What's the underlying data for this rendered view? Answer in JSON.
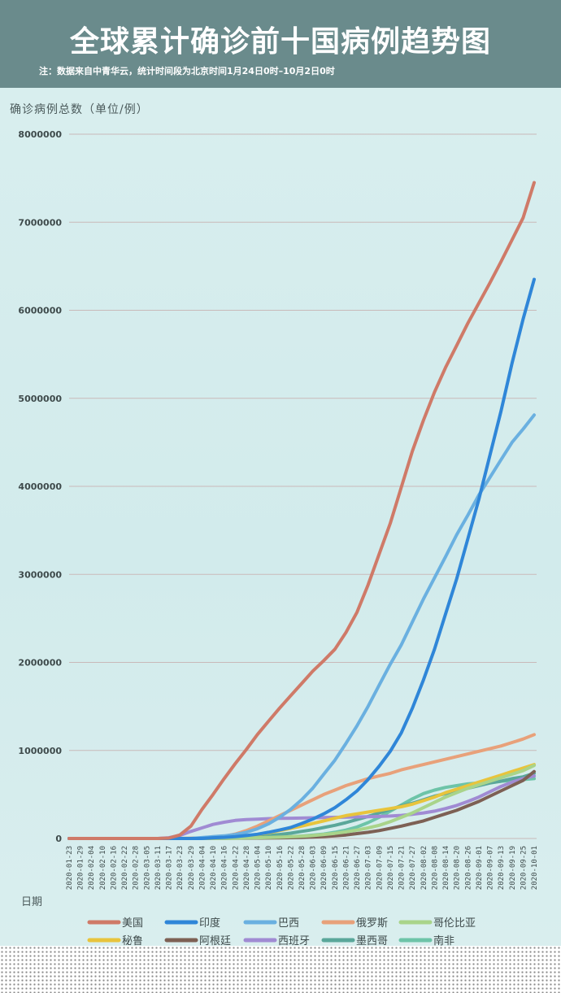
{
  "header": {
    "title": "全球累计确诊前十国病例趋势图",
    "note": "注：数据来自中青华云，统计时间段为北京时间1月24日0时–10月2日0时"
  },
  "chart_data": {
    "type": "line",
    "title": "全球累计确诊前十国病例趋势图",
    "ylabel": "确诊病例总数（单位/例）",
    "xlabel": "日期",
    "ylim": [
      0,
      8000000
    ],
    "yticks": [
      0,
      1000000,
      2000000,
      3000000,
      4000000,
      5000000,
      6000000,
      7000000,
      8000000
    ],
    "grid": true,
    "legend_position": "bottom",
    "x": [
      "2020-01-23",
      "2020-01-29",
      "2020-02-04",
      "2020-02-10",
      "2020-02-16",
      "2020-02-22",
      "2020-02-28",
      "2020-03-05",
      "2020-03-11",
      "2020-03-17",
      "2020-03-23",
      "2020-03-29",
      "2020-04-04",
      "2020-04-10",
      "2020-04-16",
      "2020-04-22",
      "2020-04-28",
      "2020-05-04",
      "2020-05-10",
      "2020-05-16",
      "2020-05-22",
      "2020-05-28",
      "2020-06-03",
      "2020-06-09",
      "2020-06-15",
      "2020-06-21",
      "2020-06-27",
      "2020-07-03",
      "2020-07-09",
      "2020-07-15",
      "2020-07-21",
      "2020-07-27",
      "2020-08-02",
      "2020-08-08",
      "2020-08-14",
      "2020-08-20",
      "2020-08-26",
      "2020-09-01",
      "2020-09-07",
      "2020-09-13",
      "2020-09-19",
      "2020-09-25",
      "2020-10-01"
    ],
    "xtick_labels": [
      "2020-01-23",
      "2020-01-29",
      "2020-02-04",
      "2020-02-10",
      "2020-02-16",
      "2020-02-22",
      "2020-02-28",
      "2020-03-05",
      "2020-03-11",
      "2020-03-17",
      "2020-03-23",
      "2020-03-29",
      "2020-04-04",
      "2020-04-10",
      "2020-04-16",
      "2020-04-22",
      "2020-04-28",
      "2020-05-04",
      "2020-05-10",
      "2020-05-16",
      "2020-05-22",
      "2020-05-28",
      "2020-06-03",
      "2020-06-09",
      "2020-06-15",
      "2020-06-21",
      "2020-06-27",
      "2020-07-03",
      "2020-07-09",
      "2020-07-15",
      "2020-07-21",
      "2020-07-27",
      "2020-08-02",
      "2020-08-08",
      "2020-08-14",
      "2020-08-20",
      "2020-08-26",
      "2020-09-01",
      "2020-09-07",
      "2020-09-13",
      "2020-09-19",
      "2020-09-25",
      "2020-10-01"
    ],
    "series": [
      {
        "name": "美国",
        "color": "#cf7a68",
        "values": [
          0,
          0,
          0,
          0,
          0,
          0,
          0,
          0,
          0,
          5000,
          40000,
          140000,
          330000,
          500000,
          680000,
          850000,
          1010000,
          1180000,
          1330000,
          1480000,
          1620000,
          1760000,
          1900000,
          2020000,
          2150000,
          2340000,
          2570000,
          2880000,
          3230000,
          3580000,
          3990000,
          4400000,
          4750000,
          5070000,
          5350000,
          5600000,
          5850000,
          6080000,
          6310000,
          6550000,
          6800000,
          7050000,
          7450000
        ]
      },
      {
        "name": "印度",
        "color": "#2f86d8",
        "values": [
          0,
          0,
          0,
          0,
          0,
          0,
          0,
          0,
          0,
          0,
          0,
          0,
          0,
          8000,
          13000,
          21000,
          33000,
          48000,
          70000,
          96000,
          125000,
          170000,
          220000,
          280000,
          350000,
          440000,
          540000,
          670000,
          820000,
          990000,
          1200000,
          1480000,
          1800000,
          2150000,
          2550000,
          2950000,
          3400000,
          3850000,
          4350000,
          4850000,
          5400000,
          5900000,
          6350000
        ]
      },
      {
        "name": "巴西",
        "color": "#6ab0e0",
        "values": [
          0,
          0,
          0,
          0,
          0,
          0,
          0,
          0,
          0,
          0,
          0,
          0,
          10000,
          20000,
          30000,
          45000,
          70000,
          110000,
          165000,
          240000,
          330000,
          440000,
          570000,
          730000,
          890000,
          1080000,
          1280000,
          1500000,
          1740000,
          1980000,
          2200000,
          2460000,
          2720000,
          2960000,
          3200000,
          3450000,
          3670000,
          3900000,
          4100000,
          4300000,
          4500000,
          4650000,
          4810000
        ]
      },
      {
        "name": "俄罗斯",
        "color": "#e8a17a",
        "values": [
          0,
          0,
          0,
          0,
          0,
          0,
          0,
          0,
          0,
          0,
          0,
          2000,
          5000,
          12000,
          25000,
          50000,
          90000,
          140000,
          200000,
          260000,
          320000,
          380000,
          440000,
          500000,
          550000,
          600000,
          640000,
          680000,
          710000,
          740000,
          780000,
          810000,
          840000,
          870000,
          900000,
          930000,
          960000,
          990000,
          1020000,
          1050000,
          1090000,
          1130000,
          1180000
        ]
      },
      {
        "name": "哥伦比亚",
        "color": "#a9d48a",
        "values": [
          0,
          0,
          0,
          0,
          0,
          0,
          0,
          0,
          0,
          0,
          0,
          0,
          1000,
          2000,
          3000,
          4000,
          6000,
          8000,
          11000,
          15000,
          19000,
          25000,
          33000,
          45000,
          58000,
          75000,
          95000,
          120000,
          150000,
          190000,
          240000,
          290000,
          350000,
          410000,
          470000,
          520000,
          570000,
          610000,
          650000,
          690000,
          730000,
          770000,
          830000
        ]
      },
      {
        "name": "秘鲁",
        "color": "#e8c43c",
        "values": [
          0,
          0,
          0,
          0,
          0,
          0,
          0,
          0,
          0,
          0,
          0,
          1000,
          2000,
          6000,
          13000,
          20000,
          30000,
          45000,
          65000,
          90000,
          115000,
          140000,
          170000,
          200000,
          230000,
          260000,
          280000,
          300000,
          320000,
          340000,
          360000,
          390000,
          430000,
          470000,
          520000,
          560000,
          600000,
          640000,
          680000,
          720000,
          760000,
          800000,
          840000
        ]
      },
      {
        "name": "阿根廷",
        "color": "#7d6054",
        "values": [
          0,
          0,
          0,
          0,
          0,
          0,
          0,
          0,
          0,
          0,
          0,
          0,
          1000,
          2000,
          3000,
          3500,
          4000,
          5000,
          6000,
          7000,
          9000,
          12000,
          17000,
          22000,
          30000,
          40000,
          55000,
          70000,
          90000,
          115000,
          140000,
          170000,
          200000,
          240000,
          280000,
          320000,
          370000,
          420000,
          480000,
          540000,
          600000,
          660000,
          760000
        ]
      },
      {
        "name": "西班牙",
        "color": "#a08bd3",
        "values": [
          0,
          0,
          0,
          0,
          0,
          0,
          0,
          0,
          0,
          8000,
          35000,
          80000,
          120000,
          160000,
          185000,
          205000,
          215000,
          220000,
          225000,
          228000,
          230000,
          232000,
          235000,
          237000,
          240000,
          243000,
          245000,
          248000,
          250000,
          255000,
          262000,
          275000,
          290000,
          310000,
          340000,
          375000,
          420000,
          470000,
          530000,
          590000,
          640000,
          680000,
          710000
        ]
      },
      {
        "name": "墨西哥",
        "color": "#5aa79a",
        "values": [
          0,
          0,
          0,
          0,
          0,
          0,
          0,
          0,
          0,
          0,
          0,
          0,
          1000,
          3000,
          5000,
          8000,
          14000,
          22000,
          33000,
          45000,
          60000,
          80000,
          100000,
          125000,
          150000,
          180000,
          215000,
          250000,
          290000,
          330000,
          370000,
          400000,
          440000,
          480000,
          510000,
          540000,
          570000,
          600000,
          630000,
          650000,
          680000,
          700000,
          740000
        ]
      },
      {
        "name": "南非",
        "color": "#6dc4a8",
        "values": [
          0,
          0,
          0,
          0,
          0,
          0,
          0,
          0,
          0,
          0,
          0,
          1000,
          1500,
          2000,
          2500,
          3500,
          5000,
          7000,
          10000,
          14000,
          20000,
          28000,
          38000,
          50000,
          70000,
          95000,
          130000,
          180000,
          240000,
          310000,
          380000,
          450000,
          510000,
          550000,
          580000,
          600000,
          620000,
          630000,
          640000,
          650000,
          660000,
          670000,
          680000
        ]
      }
    ]
  }
}
